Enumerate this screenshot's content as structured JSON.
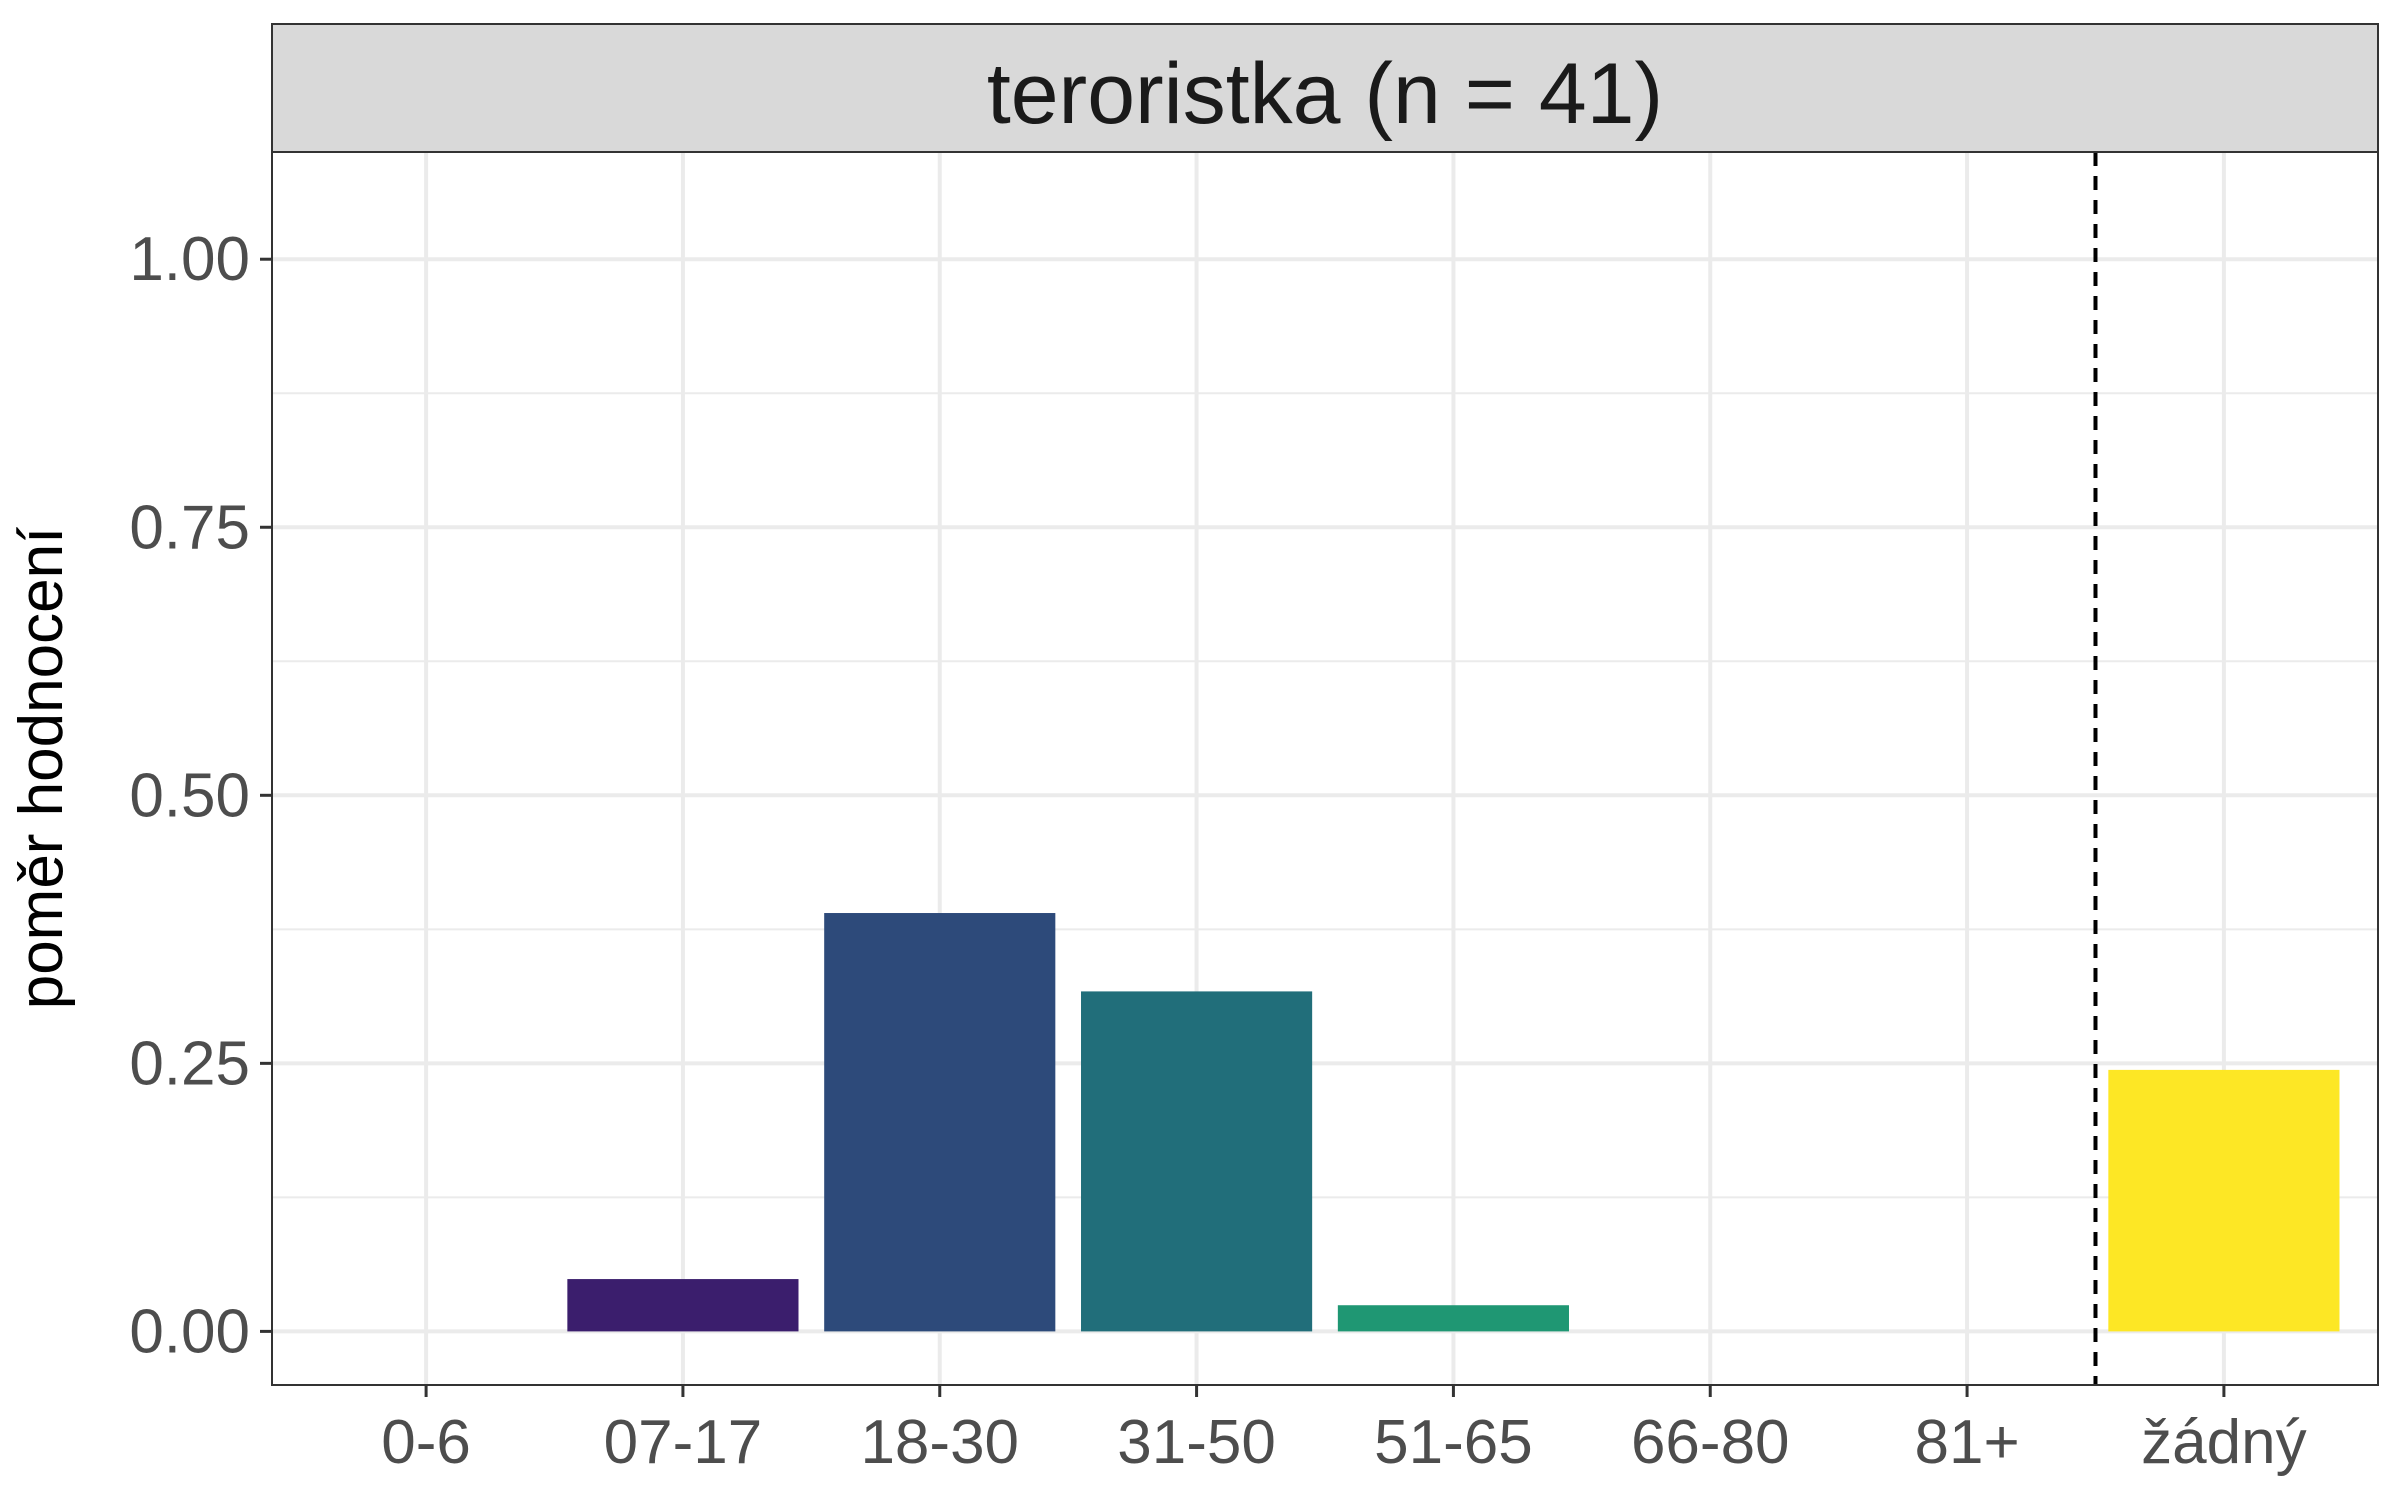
{
  "chart_data": {
    "type": "bar",
    "title": "teroristka (n = 41)",
    "xlabel": "",
    "ylabel": "poměr hodnocení",
    "ylim": [
      -0.05,
      1.1
    ],
    "yticks": [
      0.0,
      0.25,
      0.5,
      0.75,
      1.0
    ],
    "ytick_labels": [
      "0.00",
      "0.25",
      "0.50",
      "0.75",
      "1.00"
    ],
    "categories": [
      "0-6",
      "07-17",
      "18-30",
      "31-50",
      "51-65",
      "66-80",
      "81+",
      "žádný"
    ],
    "values": [
      0.0,
      0.0488,
      0.3902,
      0.3171,
      0.0244,
      0.0,
      0.0,
      0.2439
    ],
    "colors": [
      "#440154",
      "#3b1e6d",
      "#2d4a7a",
      "#216e7a",
      "#1f9773",
      "#56c667",
      "#a5db36",
      "#fde725"
    ],
    "separator_after_category": "81+",
    "grid": true,
    "legend": "none"
  }
}
